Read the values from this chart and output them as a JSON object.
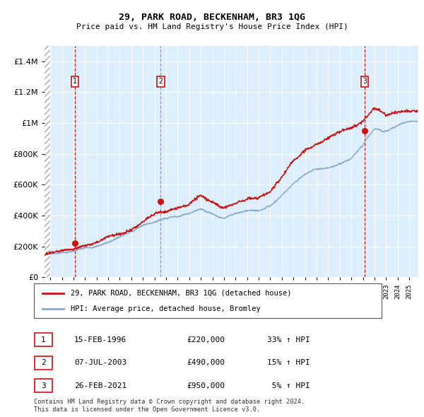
{
  "title": "29, PARK ROAD, BECKENHAM, BR3 1QG",
  "subtitle": "Price paid vs. HM Land Registry's House Price Index (HPI)",
  "sales": [
    {
      "label": "1",
      "date_num": 1996.12,
      "price": 220000,
      "pct": "33%",
      "direction": "↑",
      "date_str": "15-FEB-1996"
    },
    {
      "label": "2",
      "date_num": 2003.52,
      "price": 490000,
      "pct": "15%",
      "direction": "↑",
      "date_str": "07-JUL-2003"
    },
    {
      "label": "3",
      "date_num": 2021.15,
      "price": 950000,
      "pct": "5%",
      "direction": "↑",
      "date_str": "26-FEB-2021"
    }
  ],
  "sale_vline_colors": [
    "#cc0000",
    "#8888aa",
    "#cc0000"
  ],
  "sale_vline_styles": [
    "--",
    "--",
    "--"
  ],
  "legend_line1": "29, PARK ROAD, BECKENHAM, BR3 1QG (detached house)",
  "legend_line2": "HPI: Average price, detached house, Bromley",
  "footer1": "Contains HM Land Registry data © Crown copyright and database right 2024.",
  "footer2": "This data is licensed under the Open Government Licence v3.0.",
  "red_color": "#cc1111",
  "blue_color": "#88aacc",
  "bg_color": "#ddeeff",
  "ylim": [
    0,
    1500000
  ],
  "xlim_left": 1993.5,
  "xlim_right": 2025.8,
  "hatch_end": 1994.0,
  "hpi_anchors": {
    "1993": 140000,
    "1994": 152000,
    "1995": 162000,
    "1996": 172000,
    "1997": 188000,
    "1998": 205000,
    "1999": 232000,
    "2000": 268000,
    "2001": 300000,
    "2002": 345000,
    "2003": 368000,
    "2004": 400000,
    "2005": 415000,
    "2006": 440000,
    "2007": 470000,
    "2008": 445000,
    "2009": 415000,
    "2010": 440000,
    "2011": 455000,
    "2012": 462000,
    "2013": 495000,
    "2014": 565000,
    "2015": 645000,
    "2016": 710000,
    "2017": 740000,
    "2018": 748000,
    "2019": 768000,
    "2020": 795000,
    "2021": 880000,
    "2022": 990000,
    "2023": 975000,
    "2024": 1010000,
    "2025": 1040000
  },
  "red_anchors": {
    "1993": 145000,
    "1994": 150000,
    "1995": 165000,
    "1996": 175000,
    "1997": 210000,
    "1998": 235000,
    "1999": 275000,
    "2000": 305000,
    "2001": 330000,
    "2002": 370000,
    "2003": 420000,
    "2004": 440000,
    "2005": 455000,
    "2006": 490000,
    "2007": 550000,
    "2008": 520000,
    "2009": 485000,
    "2010": 510000,
    "2011": 530000,
    "2012": 535000,
    "2013": 575000,
    "2014": 660000,
    "2015": 760000,
    "2016": 830000,
    "2017": 880000,
    "2018": 930000,
    "2019": 965000,
    "2020": 990000,
    "2021": 1050000,
    "2022": 1140000,
    "2023": 1090000,
    "2024": 1110000,
    "2025": 1100000
  }
}
